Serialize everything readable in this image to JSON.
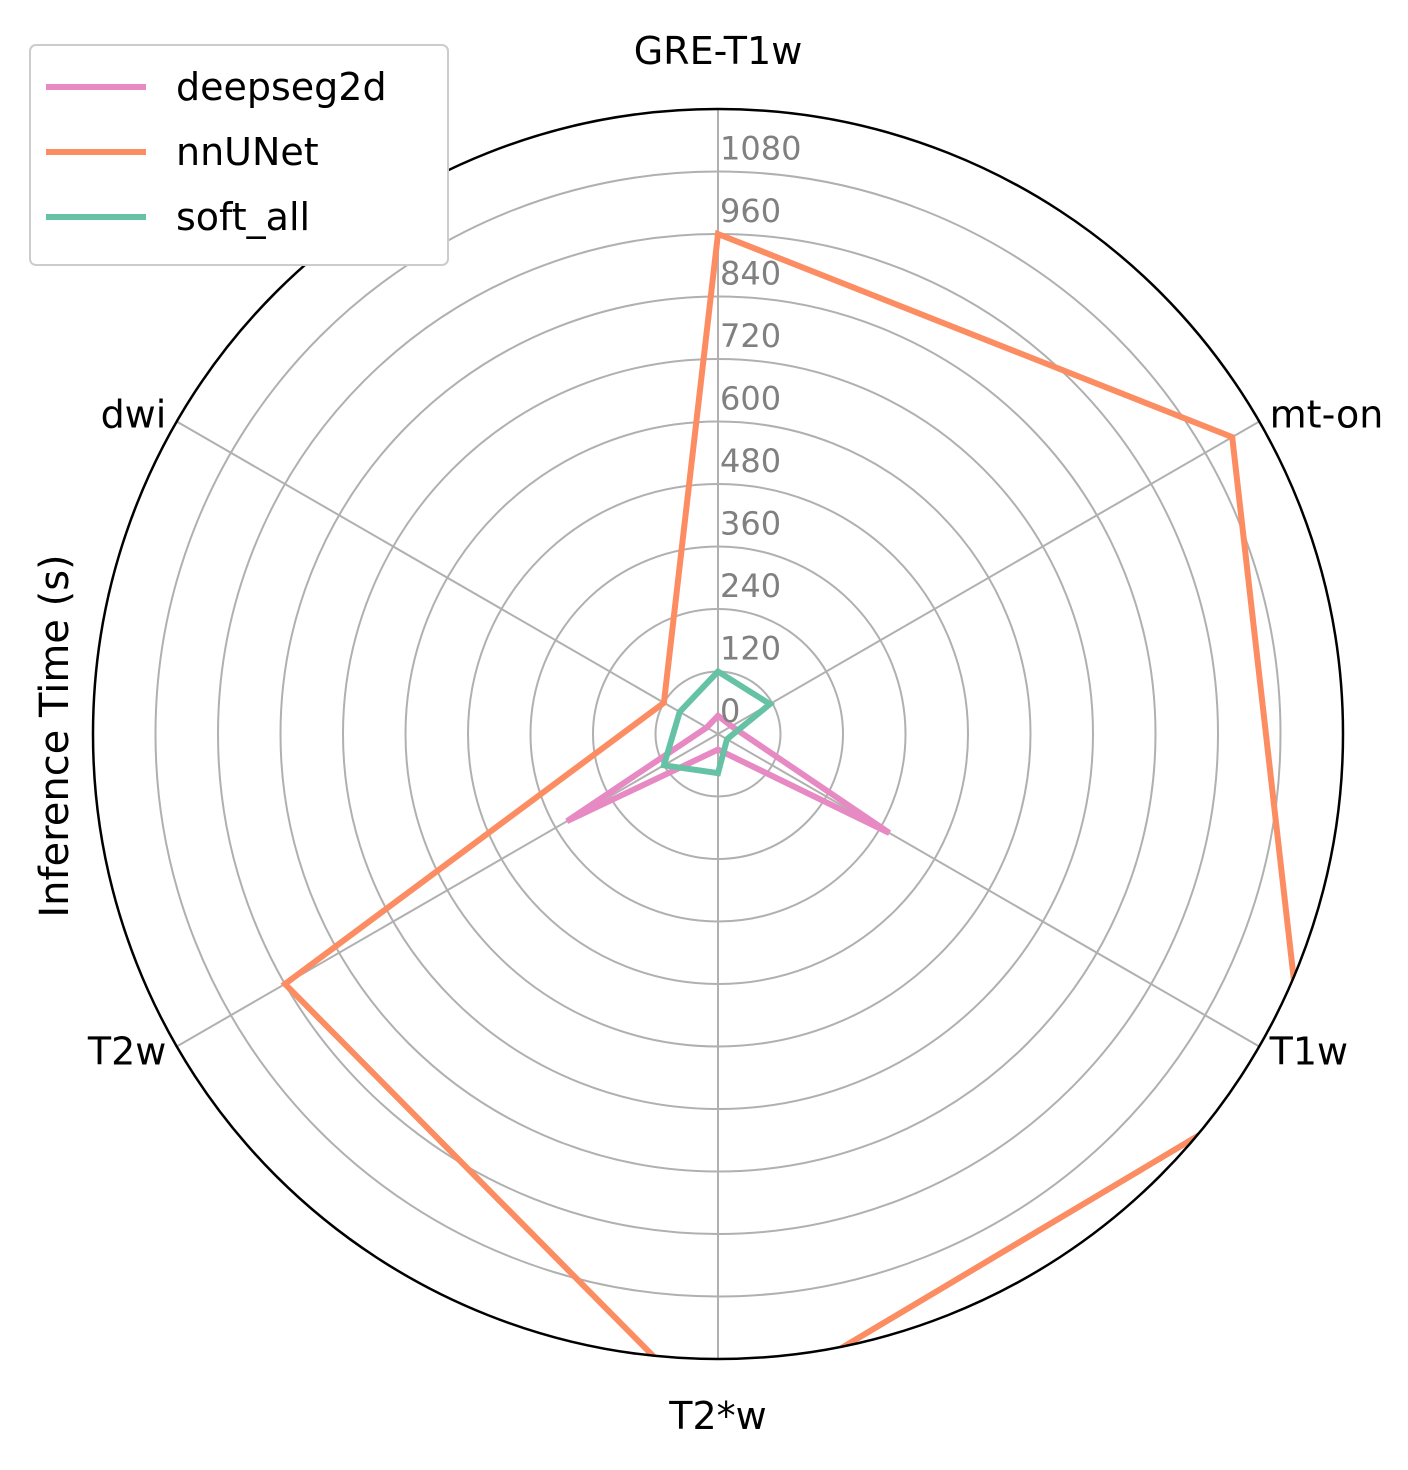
{
  "chart_data": {
    "type": "radar",
    "title": "",
    "ylabel": "Inference Time (s)",
    "categories": [
      "GRE-T1w",
      "mt-on",
      "T1w",
      "T2*w",
      "T2w",
      "dwi"
    ],
    "rlim": [
      0,
      1200
    ],
    "rticks": [
      "0",
      "120",
      "240",
      "360",
      "480",
      "600",
      "720",
      "840",
      "960",
      "1080"
    ],
    "grid": true,
    "legend_position": "top-left",
    "series": [
      {
        "name": "deepseg2d",
        "color": "#e78ac3",
        "values": [
          35,
          30,
          380,
          30,
          335,
          25
        ]
      },
      {
        "name": "nnUNet",
        "color": "#fc8d62",
        "values": [
          960,
          1140,
          1300,
          1320,
          960,
          120
        ]
      },
      {
        "name": "soft_all",
        "color": "#66c2a5",
        "values": [
          120,
          115,
          20,
          75,
          120,
          85
        ]
      }
    ]
  }
}
